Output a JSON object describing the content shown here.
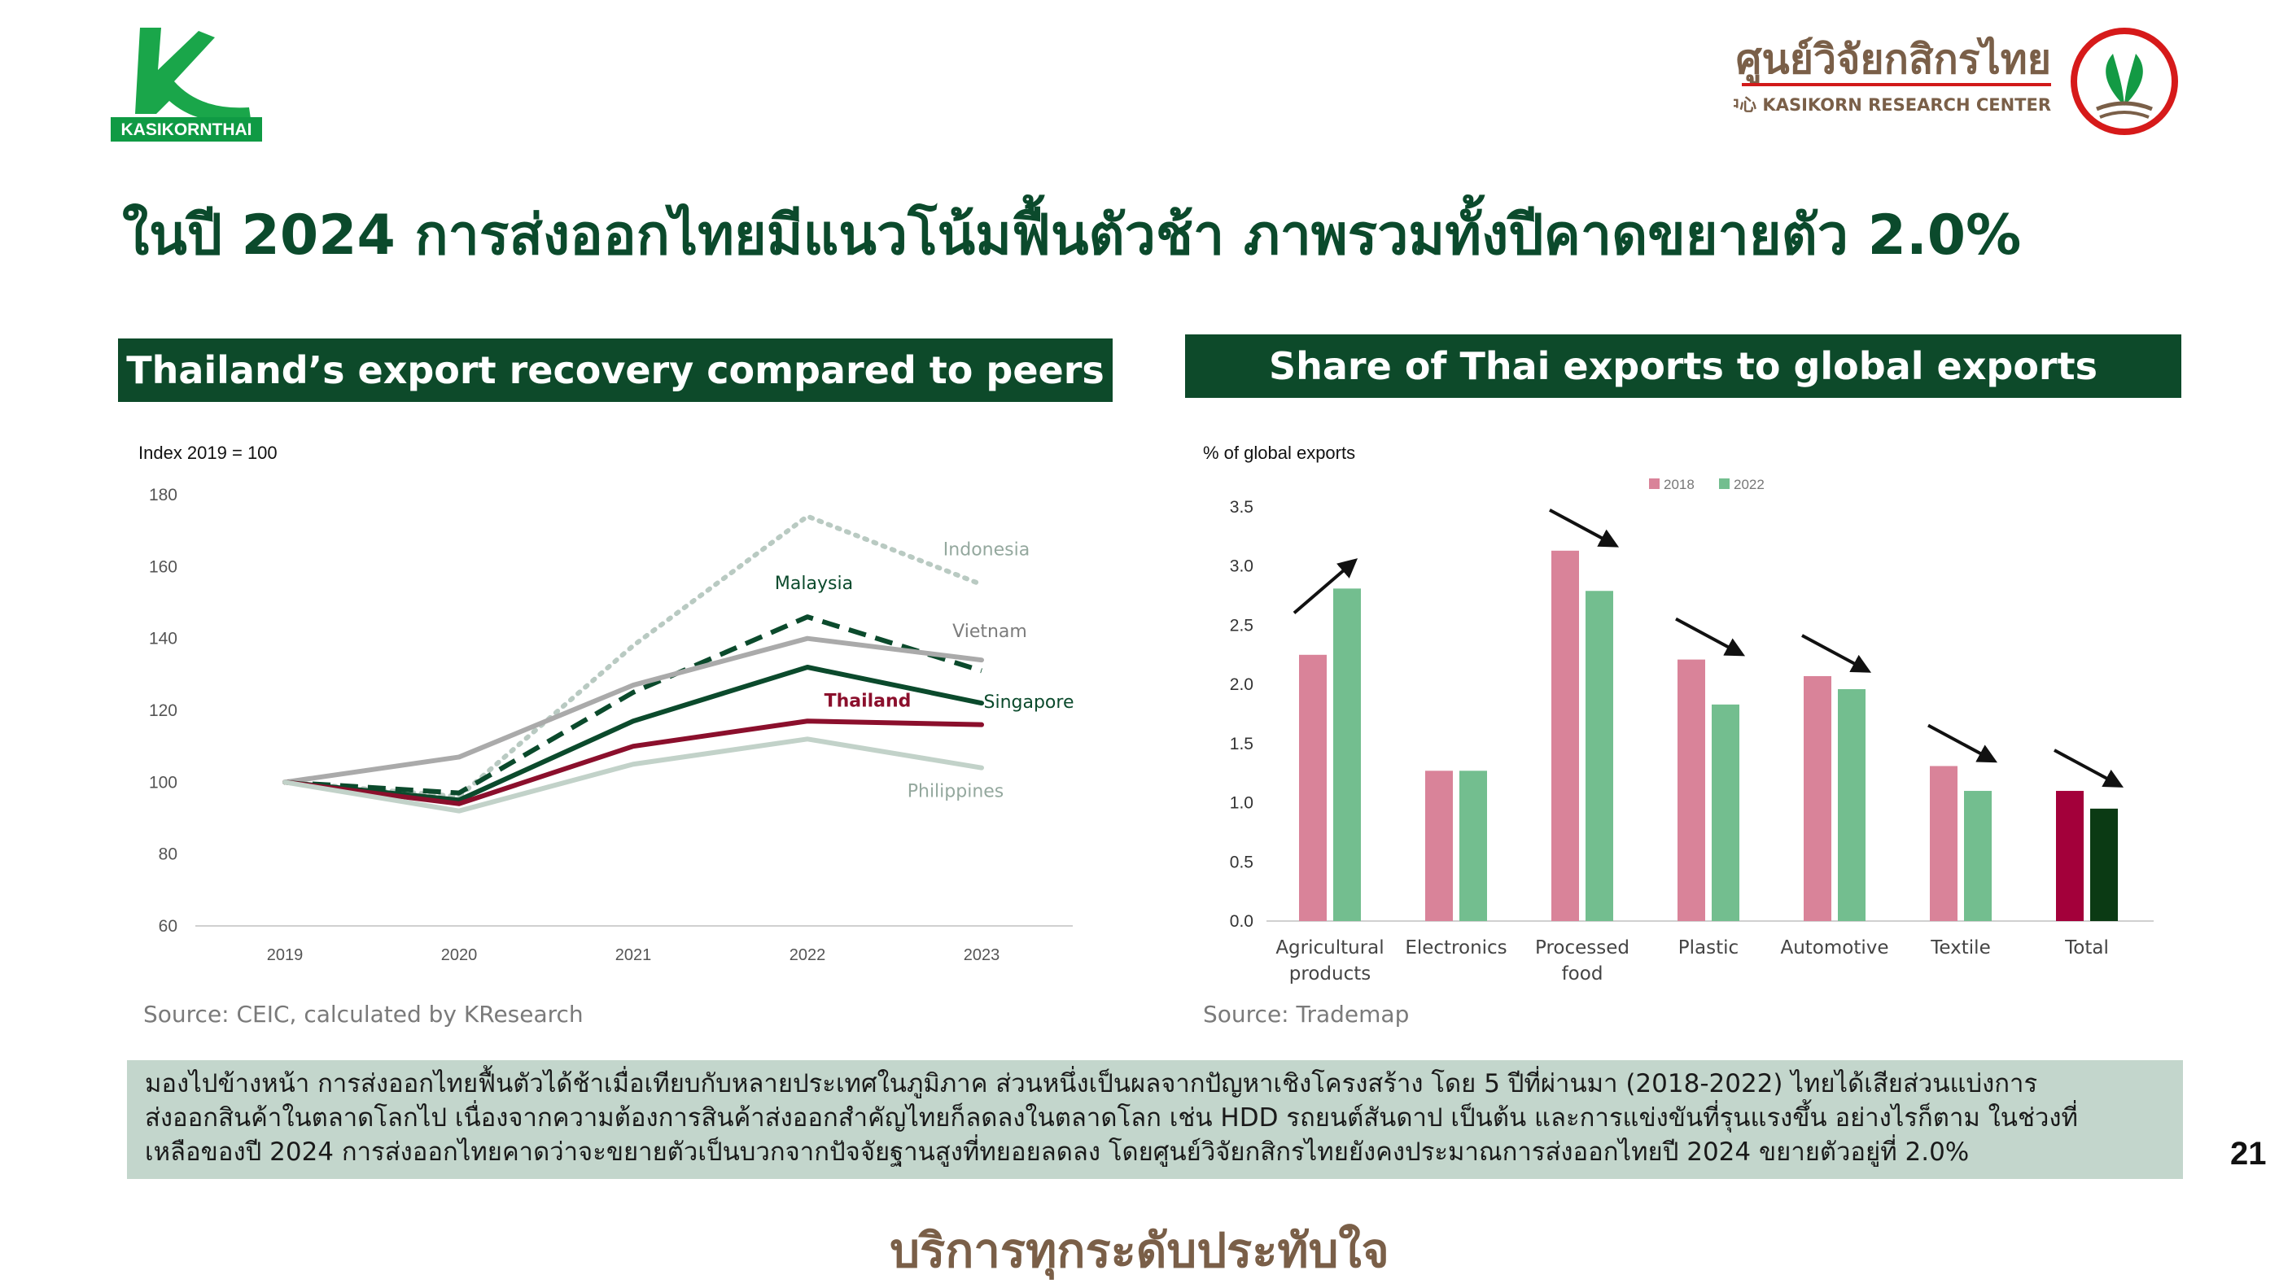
{
  "logos": {
    "left_brand_text": "KASIKORNTHAI",
    "right_title_thai": "ศูนย์วิจัยกสิกรไทย",
    "right_subtitle": "开泰研究中心 KASIKORN RESEARCH CENTER"
  },
  "main_title": "ในปี 2024 การส่งออกไทยมีแนวโน้มฟื้นตัวช้า ภาพรวมทั้งปีคาดขยายตัว 2.0%",
  "left_panel": {
    "header": "Thailand’s export recovery compared to peers",
    "source": "Source: CEIC, calculated by KResearch"
  },
  "right_panel": {
    "header": "Share of Thai exports to global exports",
    "source": "Source: Trademap"
  },
  "summary": {
    "lines": [
      "มองไปข้างหน้า การส่งออกไทยฟื้นตัวได้ช้าเมื่อเทียบกับหลายประเทศในภูมิภาค ส่วนหนึ่งเป็นผลจากปัญหาเชิงโครงสร้าง โดย 5 ปีที่ผ่านมา (2018-2022) ไทยได้เสียส่วนแบ่งการ",
      "ส่งออกสินค้าในตลาดโลกไป เนื่องจากความต้องการสินค้าส่งออกสำคัญไทยก็ลดลงในตลาดโลก เช่น  HDD รถยนต์สันดาป เป็นต้น และการแข่งขันที่รุนแรงขึ้น อย่างไรก็ตาม ในช่วงที่",
      "เหลือของปี 2024 การส่งออกไทยคาดว่าจะขยายตัวเป็นบวกจากปัจจัยฐานสูงที่ทยอยลดลง โดยศูนย์วิจัยกสิกรไทยยังคงประมาณการส่งออกไทยปี 2024 ขยายตัวอยู่ที่ 2.0%"
    ]
  },
  "page_number": "21",
  "footer_slogan": "บริการทุกระดับประทับใจ",
  "chart_data": [
    {
      "type": "line",
      "ylabel": "Index 2019 = 100",
      "x": [
        "2019",
        "2020",
        "2021",
        "2022",
        "2023"
      ],
      "ylim": [
        60,
        180
      ],
      "yticks": [
        60,
        80,
        100,
        120,
        140,
        160,
        180
      ],
      "legend": "direct labels at line ends",
      "series": [
        {
          "name": "Indonesia",
          "values": [
            100,
            96,
            138,
            174,
            155
          ],
          "color": "#b9cac2",
          "style": "dotted"
        },
        {
          "name": "Malaysia",
          "values": [
            100,
            97,
            125,
            146,
            131
          ],
          "color": "#0b4a2c",
          "style": "dashed"
        },
        {
          "name": "Vietnam",
          "values": [
            100,
            107,
            127,
            140,
            134
          ],
          "color": "#aaaaaa",
          "style": "solid"
        },
        {
          "name": "Singapore",
          "values": [
            100,
            95,
            117,
            132,
            122
          ],
          "color": "#0b4a2c",
          "style": "solid"
        },
        {
          "name": "Thailand",
          "values": [
            100,
            94,
            110,
            117,
            116
          ],
          "color": "#8b0f2c",
          "style": "solid"
        },
        {
          "name": "Philippines",
          "values": [
            100,
            92,
            105,
            112,
            104
          ],
          "color": "#c2d2c9",
          "style": "solid"
        }
      ]
    },
    {
      "type": "bar",
      "ylabel": "% of global exports",
      "categories": [
        [
          "Agricultural",
          "products"
        ],
        [
          "Electronics"
        ],
        [
          "Processed",
          "food"
        ],
        [
          "Plastic"
        ],
        [
          "Automotive"
        ],
        [
          "Textile"
        ],
        [
          "Total"
        ]
      ],
      "ylim": [
        0,
        3.5
      ],
      "yticks": [
        "0.0",
        "0.5",
        "1.0",
        "1.5",
        "2.0",
        "2.5",
        "3.0",
        "3.5"
      ],
      "legend": "top-center",
      "series": [
        {
          "name": "2018",
          "values": [
            2.25,
            1.27,
            3.13,
            2.21,
            2.07,
            1.31,
            1.1
          ],
          "color": "#d98399",
          "total_color": "#a3003a"
        },
        {
          "name": "2022",
          "values": [
            2.81,
            1.27,
            2.79,
            1.83,
            1.96,
            1.1,
            0.95
          ],
          "color": "#73be8f",
          "total_color": "#0b3a14"
        }
      ],
      "arrows": [
        "up",
        "none",
        "down",
        "down",
        "down",
        "down",
        "down"
      ]
    }
  ]
}
